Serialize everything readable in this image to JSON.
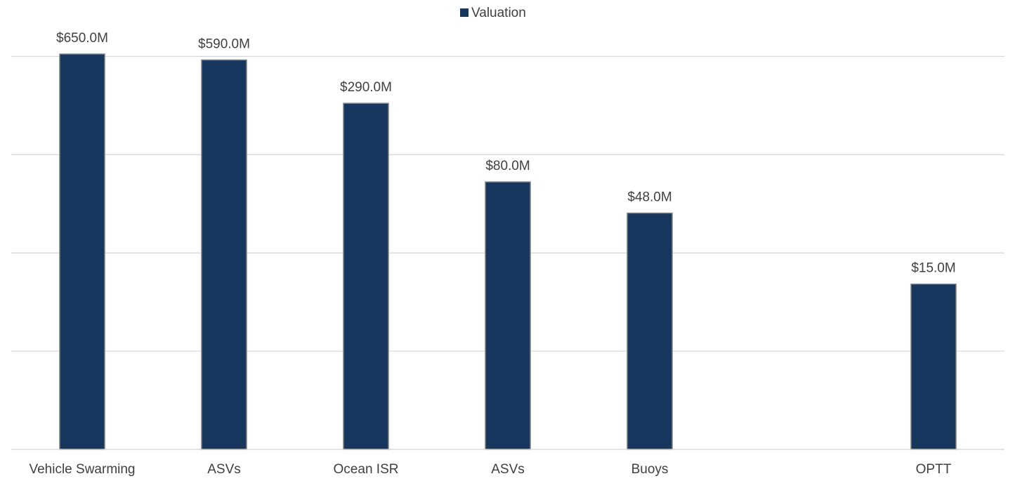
{
  "chart_data": {
    "type": "bar",
    "categories": [
      "Vehicle Swarming",
      "ASVs",
      "Ocean ISR",
      "ASVs",
      "Buoys",
      null,
      "OPTT"
    ],
    "series": [
      {
        "name": "Valuation",
        "color": "#17375e",
        "values": [
          650,
          590,
          290,
          80,
          48,
          null,
          15
        ],
        "value_labels": [
          "$650.0M",
          "$590.0M",
          "$290.0M",
          "$80.0M",
          "$48.0M",
          null,
          "$15.0M"
        ]
      }
    ],
    "log_scale": true,
    "log_base": 5,
    "ylim": [
      1,
      650
    ],
    "yticks": [
      1,
      5,
      25,
      125,
      625
    ],
    "grid": true,
    "legend": "top"
  }
}
